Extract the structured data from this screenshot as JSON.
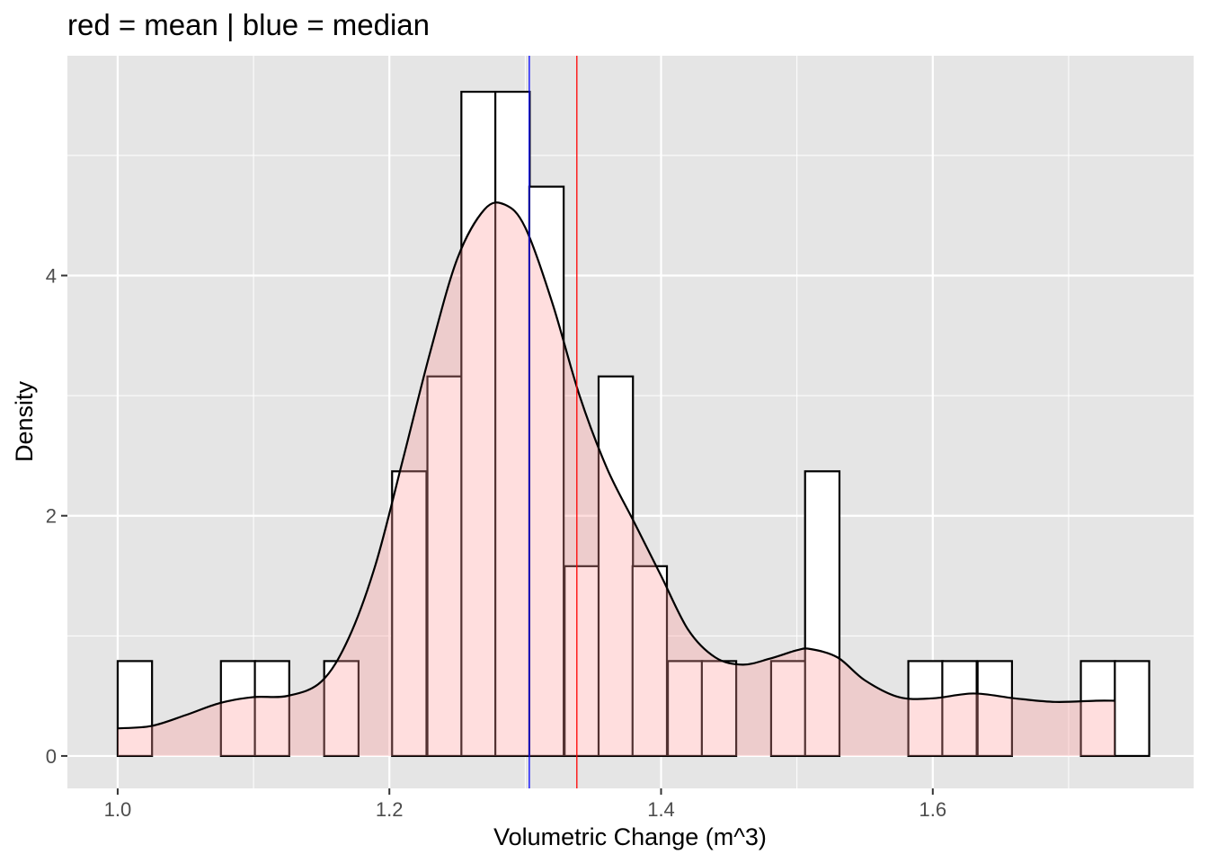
{
  "chart_data": {
    "type": "histogram",
    "title": "red = mean | blue = median",
    "xlabel": "Volumetric Change (m^3)",
    "ylabel": "Density",
    "xlim": [
      0.963,
      1.792
    ],
    "ylim": [
      -0.27,
      5.83
    ],
    "x_ticks": [
      {
        "value": 1.0,
        "label": "1.0"
      },
      {
        "value": 1.2,
        "label": "1.2"
      },
      {
        "value": 1.4,
        "label": "1.4"
      },
      {
        "value": 1.6,
        "label": "1.6"
      }
    ],
    "y_ticks": [
      {
        "value": 0,
        "label": "0"
      },
      {
        "value": 2,
        "label": "2"
      },
      {
        "value": 4,
        "label": "4"
      }
    ],
    "grid": true,
    "bin_width": 0.0253,
    "bins": [
      {
        "start": 1.0,
        "density": 0.79
      },
      {
        "start": 1.025,
        "density": 0
      },
      {
        "start": 1.051,
        "density": 0
      },
      {
        "start": 1.076,
        "density": 0.79
      },
      {
        "start": 1.101,
        "density": 0.79
      },
      {
        "start": 1.126,
        "density": 0
      },
      {
        "start": 1.152,
        "density": 0.79
      },
      {
        "start": 1.177,
        "density": 0
      },
      {
        "start": 1.202,
        "density": 2.37
      },
      {
        "start": 1.228,
        "density": 3.16
      },
      {
        "start": 1.253,
        "density": 5.53
      },
      {
        "start": 1.278,
        "density": 5.53
      },
      {
        "start": 1.303,
        "density": 4.74
      },
      {
        "start": 1.329,
        "density": 1.58
      },
      {
        "start": 1.354,
        "density": 3.16
      },
      {
        "start": 1.379,
        "density": 1.58
      },
      {
        "start": 1.405,
        "density": 0.79
      },
      {
        "start": 1.43,
        "density": 0.79
      },
      {
        "start": 1.455,
        "density": 0
      },
      {
        "start": 1.481,
        "density": 0.79
      },
      {
        "start": 1.506,
        "density": 2.37
      },
      {
        "start": 1.531,
        "density": 0
      },
      {
        "start": 1.557,
        "density": 0
      },
      {
        "start": 1.582,
        "density": 0.79
      },
      {
        "start": 1.607,
        "density": 0.79
      },
      {
        "start": 1.633,
        "density": 0.79
      },
      {
        "start": 1.658,
        "density": 0
      },
      {
        "start": 1.683,
        "density": 0
      },
      {
        "start": 1.709,
        "density": 0.79
      },
      {
        "start": 1.734,
        "density": 0.79
      }
    ],
    "density_curve": {
      "x": [
        1.0,
        1.025,
        1.05,
        1.075,
        1.1,
        1.125,
        1.15,
        1.17,
        1.19,
        1.21,
        1.23,
        1.25,
        1.27,
        1.285,
        1.3,
        1.32,
        1.34,
        1.36,
        1.38,
        1.4,
        1.42,
        1.44,
        1.46,
        1.48,
        1.5,
        1.51,
        1.53,
        1.55,
        1.575,
        1.6,
        1.63,
        1.66,
        1.69,
        1.72,
        1.734
      ],
      "y": [
        0.23,
        0.25,
        0.34,
        0.44,
        0.49,
        0.5,
        0.62,
        0.98,
        1.6,
        2.47,
        3.36,
        4.14,
        4.55,
        4.59,
        4.4,
        3.77,
        3.0,
        2.4,
        1.95,
        1.5,
        1.05,
        0.82,
        0.76,
        0.81,
        0.88,
        0.89,
        0.82,
        0.63,
        0.49,
        0.48,
        0.52,
        0.48,
        0.45,
        0.46,
        0.46
      ]
    },
    "mean_line": {
      "label": "mean",
      "value": 1.338,
      "color": "#ff0000"
    },
    "median_line": {
      "label": "median",
      "value": 1.303,
      "color": "#0000ff"
    },
    "colors": {
      "panel_background": "#e5e5e5",
      "grid": "#ffffff",
      "bar_fill": "#ffffff",
      "bar_outline": "#000000",
      "density_fill": "#ff9999",
      "density_line": "#000000"
    }
  }
}
